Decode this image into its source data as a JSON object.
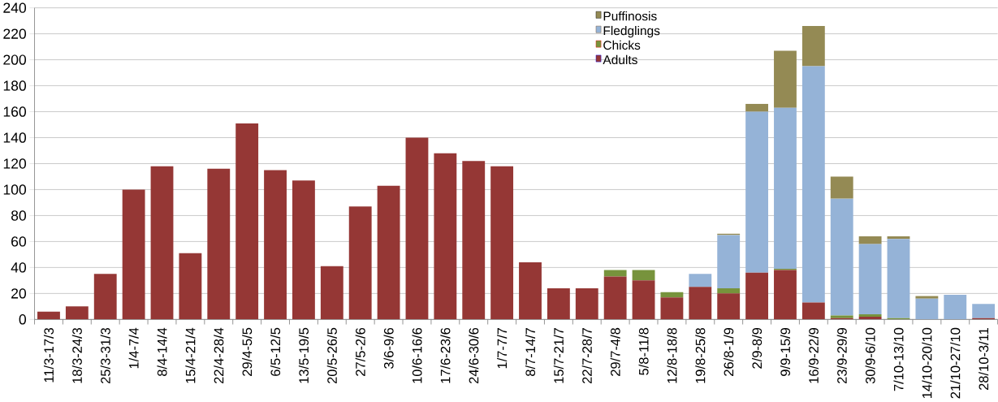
{
  "chart_data": {
    "type": "bar",
    "stacked": true,
    "grid": "y",
    "legend": "top right",
    "categories": [
      "11/3-17/3",
      "18/3-24/3",
      "25/3-31/3",
      "1/4-7/4",
      "8/4-14/4",
      "15/4-21/4",
      "22/4-28/4",
      "29/4-5/5",
      "6/5-12/5",
      "13/5-19/5",
      "20/5-26/5",
      "27/5-2/6",
      "3/6-9/6",
      "10/6-16/6",
      "17/6-23/6",
      "24/6-30/6",
      "1/7-7/7",
      "8/7-14/7",
      "15/7-21/7",
      "22/7-28/7",
      "29/7-4/8",
      "5/8-11/8",
      "12/8-18/8",
      "19/8-25/8",
      "26/8-1/9",
      "2/9-8/9",
      "9/9-15/9",
      "16/9-22/9",
      "23/9-29/9",
      "30/9-6/10",
      "7/10-13/10",
      "14/10-20/10",
      "21/10-27/10",
      "28/10-3/11"
    ],
    "ylim": [
      0,
      240
    ],
    "yticks": [
      0,
      20,
      40,
      60,
      80,
      100,
      120,
      140,
      160,
      180,
      200,
      220,
      240
    ],
    "series": [
      {
        "name": "Adults",
        "color": "#953735",
        "values": [
          6,
          10,
          35,
          100,
          118,
          51,
          116,
          151,
          115,
          107,
          41,
          87,
          103,
          140,
          128,
          122,
          118,
          44,
          24,
          24,
          33,
          30,
          17,
          25,
          20,
          36,
          38,
          13,
          1,
          2,
          null,
          null,
          null,
          1
        ]
      },
      {
        "name": "Chicks",
        "color": "#77933c",
        "values": [
          null,
          null,
          null,
          null,
          null,
          null,
          null,
          null,
          null,
          null,
          null,
          null,
          null,
          null,
          null,
          null,
          null,
          null,
          null,
          null,
          5,
          8,
          4,
          null,
          4,
          null,
          1,
          null,
          2,
          2,
          1,
          null,
          null,
          null
        ]
      },
      {
        "name": "Fledglings",
        "color": "#95b3d7",
        "values": [
          null,
          null,
          null,
          null,
          null,
          null,
          null,
          null,
          null,
          null,
          null,
          null,
          null,
          null,
          null,
          null,
          null,
          null,
          null,
          null,
          null,
          null,
          null,
          10,
          41,
          124,
          124,
          182,
          90,
          54,
          61,
          16,
          19,
          11
        ]
      },
      {
        "name": "Puffinosis",
        "color": "#948a54",
        "values": [
          null,
          null,
          null,
          null,
          null,
          null,
          null,
          null,
          null,
          null,
          null,
          null,
          null,
          null,
          null,
          null,
          null,
          null,
          null,
          null,
          null,
          null,
          null,
          null,
          1,
          6,
          44,
          31,
          17,
          6,
          2,
          2,
          null,
          null
        ]
      }
    ]
  }
}
